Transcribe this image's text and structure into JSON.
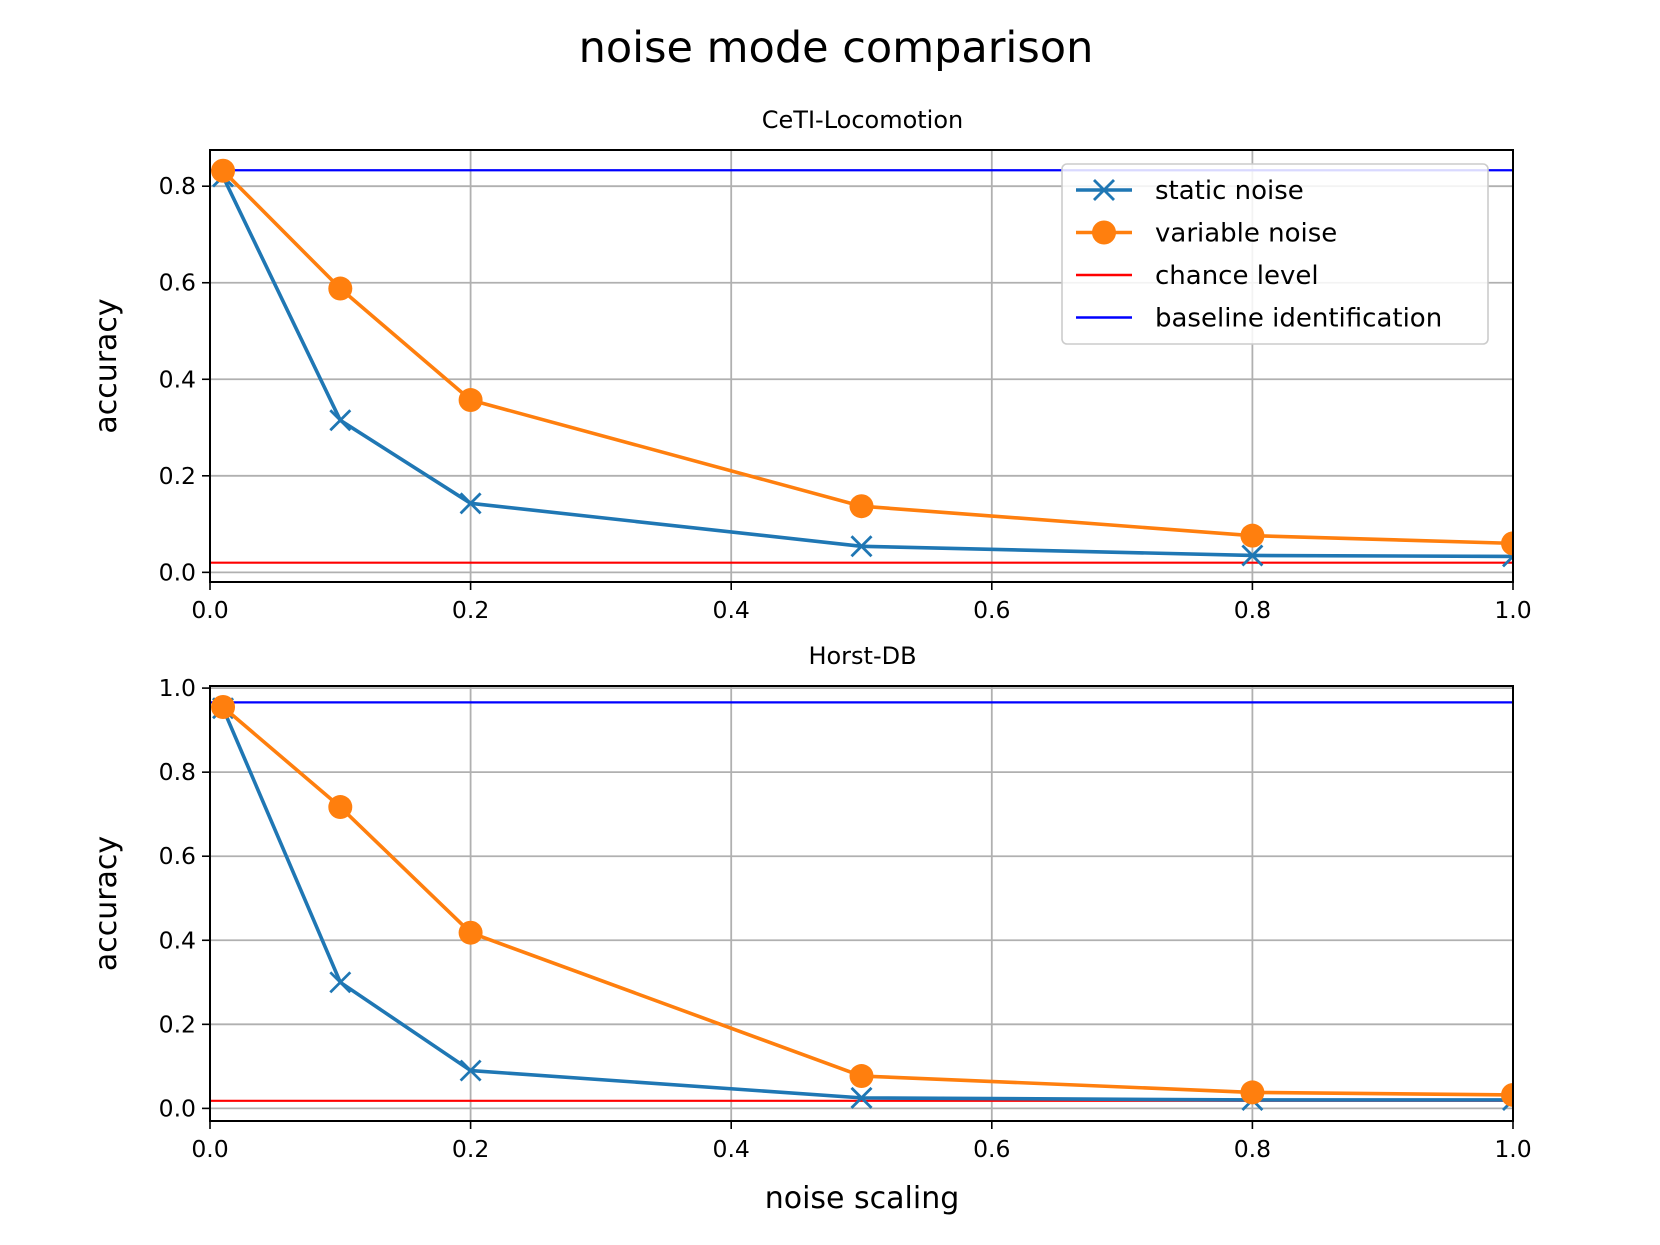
{
  "chart_data": {
    "type": "line",
    "title": "noise mode comparison",
    "xlabel": "noise scaling",
    "colors": {
      "static": "#1f77b4",
      "variable": "#ff7f0e",
      "chance": "#ff0000",
      "baseline": "#0000ff",
      "grid": "#b0b0b0"
    },
    "legend": {
      "placement": "top-right",
      "entries": [
        {
          "label": "static noise",
          "kind": "line-x",
          "color": "#1f77b4"
        },
        {
          "label": "variable noise",
          "kind": "line-dot",
          "color": "#ff7f0e"
        },
        {
          "label": "chance level",
          "kind": "line",
          "color": "#ff0000"
        },
        {
          "label": "baseline identification",
          "kind": "line",
          "color": "#0000ff"
        }
      ]
    },
    "subplots": [
      {
        "title": "CeTI-Locomotion",
        "ylabel": "accuracy",
        "xlim": [
          0.0,
          1.0
        ],
        "ylim": [
          -0.02,
          0.875
        ],
        "xticks": [
          "0.0",
          "0.2",
          "0.4",
          "0.6",
          "0.8",
          "1.0"
        ],
        "yticks": [
          "0.0",
          "0.2",
          "0.4",
          "0.6",
          "0.8"
        ],
        "x": [
          0.01,
          0.1,
          0.2,
          0.5,
          0.8,
          1.0
        ],
        "series": [
          {
            "name": "static noise",
            "marker": "x",
            "values": [
              0.82,
              0.315,
              0.143,
              0.054,
              0.035,
              0.033
            ]
          },
          {
            "name": "variable noise",
            "marker": "o",
            "values": [
              0.832,
              0.588,
              0.357,
              0.137,
              0.076,
              0.06
            ]
          }
        ],
        "chance_level": 0.02,
        "baseline": 0.833,
        "show_legend": true
      },
      {
        "title": "Horst-DB",
        "ylabel": "accuracy",
        "xlim": [
          0.0,
          1.0
        ],
        "ylim": [
          -0.03,
          1.005
        ],
        "xticks": [
          "0.0",
          "0.2",
          "0.4",
          "0.6",
          "0.8",
          "1.0"
        ],
        "yticks": [
          "0.0",
          "0.2",
          "0.4",
          "0.6",
          "0.8",
          "1.0"
        ],
        "x": [
          0.01,
          0.1,
          0.2,
          0.5,
          0.8,
          1.0
        ],
        "series": [
          {
            "name": "static noise",
            "marker": "x",
            "values": [
              0.952,
              0.3,
              0.09,
              0.025,
              0.02,
              0.02
            ]
          },
          {
            "name": "variable noise",
            "marker": "o",
            "values": [
              0.955,
              0.717,
              0.418,
              0.077,
              0.038,
              0.032
            ]
          }
        ],
        "chance_level": 0.018,
        "baseline": 0.966,
        "show_legend": false
      }
    ]
  }
}
